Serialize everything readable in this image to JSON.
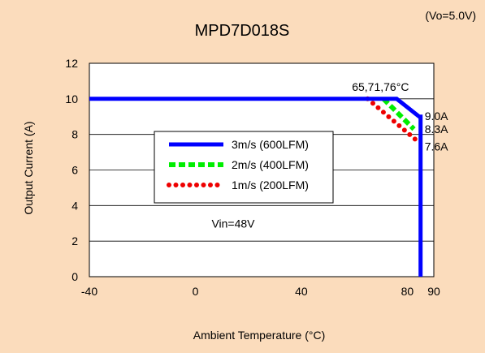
{
  "colors": {
    "panel_background": "#fbdcbc",
    "plot_background": "#ffffff",
    "series_600": "#0000ff",
    "series_400": "#00ee00",
    "series_200": "#ee0000"
  },
  "chart_data": {
    "type": "line",
    "title": "MPD7D018S",
    "subtitle": "(Vo=5.0V)",
    "xlabel": "Ambient Temperature (°C)",
    "ylabel": "Output Current (A)",
    "xlim": [
      -40,
      90
    ],
    "ylim": [
      0,
      12
    ],
    "x_ticks": [
      "-40",
      "0",
      "40",
      "80",
      "90"
    ],
    "x_tick_values": [
      -40,
      0,
      40,
      80,
      90
    ],
    "y_ticks": [
      "0",
      "2",
      "4",
      "6",
      "8",
      "10",
      "12"
    ],
    "y_tick_values": [
      0,
      2,
      4,
      6,
      8,
      10,
      12
    ],
    "grid": "horizontal",
    "legend_position": "center-left",
    "series": [
      {
        "name": "3m/s (600LFM)",
        "style": "solid",
        "x": [
          -40,
          76,
          84.5,
          85,
          85
        ],
        "y": [
          10,
          10,
          9.0,
          9.0,
          0
        ]
      },
      {
        "name": "2m/s (400LFM)",
        "style": "dashed",
        "x": [
          71,
          82.5
        ],
        "y": [
          10,
          8.3
        ]
      },
      {
        "name": "1m/s (200LFM)",
        "style": "dotted",
        "x": [
          65,
          84
        ],
        "y": [
          10,
          7.6
        ]
      }
    ],
    "annotations": [
      {
        "text": "65,71,76°C",
        "x": 76,
        "y": 10
      },
      {
        "text": "9.0A",
        "x": 85,
        "y": 9.0
      },
      {
        "text": "8.3A",
        "x": 85,
        "y": 8.3
      },
      {
        "text": "7.6A",
        "x": 85,
        "y": 7.6
      },
      {
        "text": "Vin=48V",
        "x": 0,
        "y": 3
      }
    ]
  }
}
